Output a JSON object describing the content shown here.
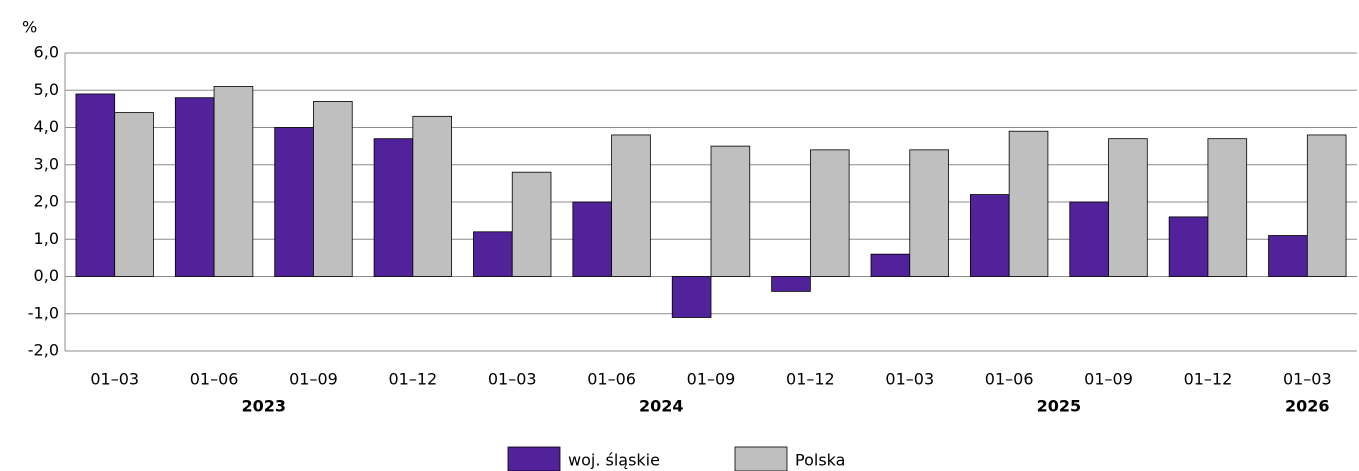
{
  "chart_data": {
    "type": "bar",
    "ylabel": "%",
    "categories": [
      "01–03",
      "01–06",
      "01–09",
      "01–12",
      "01–03",
      "01–06",
      "01–09",
      "01–12",
      "01–03",
      "01–06",
      "01–09",
      "01–12",
      "01–03"
    ],
    "category_groups": [
      {
        "label": "2023",
        "size": 4
      },
      {
        "label": "2024",
        "size": 4
      },
      {
        "label": "2025",
        "size": 4
      },
      {
        "label": "2026",
        "size": 1
      }
    ],
    "series": [
      {
        "name": "woj. śląskie",
        "color": "#512299",
        "values": [
          4.9,
          4.8,
          4.0,
          3.7,
          1.2,
          2.0,
          -1.1,
          -0.4,
          0.6,
          2.2,
          2.0,
          1.6,
          1.1
        ]
      },
      {
        "name": "Polska",
        "color": "#bfbfbf",
        "values": [
          4.4,
          5.1,
          4.7,
          4.3,
          2.8,
          3.8,
          3.5,
          3.4,
          3.4,
          3.9,
          3.7,
          3.7,
          3.8
        ]
      }
    ],
    "ylim": [
      -2,
      6
    ],
    "yticks": [
      {
        "value": -2,
        "label": "-2,0"
      },
      {
        "value": -1,
        "label": "-1,0"
      },
      {
        "value": 0,
        "label": "0,0"
      },
      {
        "value": 1,
        "label": "1,0"
      },
      {
        "value": 2,
        "label": "2,0"
      },
      {
        "value": 3,
        "label": "3,0"
      },
      {
        "value": 4,
        "label": "4,0"
      },
      {
        "value": 5,
        "label": "5,0"
      },
      {
        "value": 6,
        "label": "6,0"
      }
    ],
    "grid": true,
    "legend": "bottom"
  }
}
